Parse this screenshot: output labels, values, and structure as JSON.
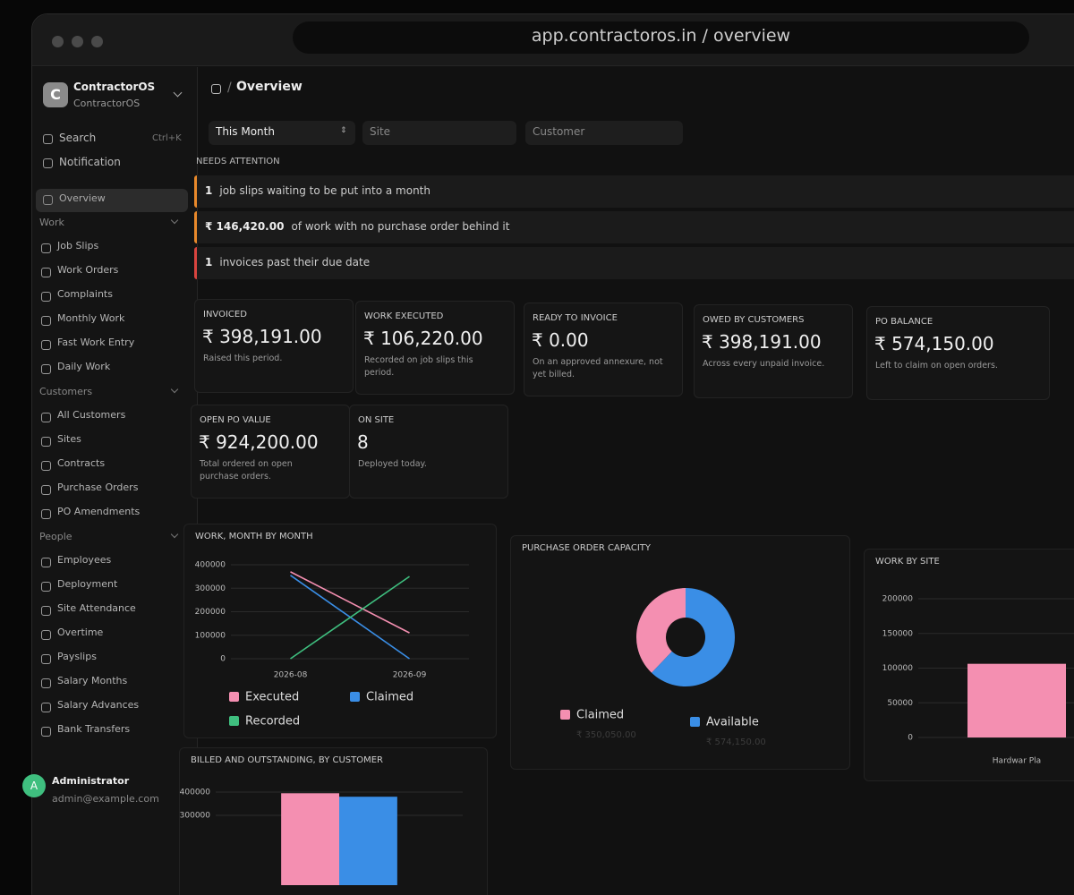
{
  "browser": {
    "url": "app.contractoros.in / overview"
  },
  "sidebar": {
    "org": {
      "initial": "C",
      "name": "ContractorOS",
      "sub": "ContractorOS"
    },
    "search": "Search",
    "shortcut": "Ctrl+K",
    "notification": "Notification",
    "overview": "Overview",
    "sections": [
      {
        "label": "Work",
        "items": [
          "Job Slips",
          "Work Orders",
          "Complaints",
          "Monthly Work",
          "Fast Work Entry",
          "Daily Work"
        ]
      },
      {
        "label": "Customers",
        "items": [
          "All Customers",
          "Sites",
          "Contracts",
          "Purchase Orders",
          "PO Amendments"
        ]
      },
      {
        "label": "People",
        "items": [
          "Employees",
          "Deployment",
          "Site Attendance",
          "Overtime",
          "Payslips",
          "Salary Months",
          "Salary Advances",
          "Bank Transfers"
        ]
      }
    ],
    "user": {
      "initial": "A",
      "name": "Administrator",
      "email": "admin@example.com"
    }
  },
  "breadcrumb": "Overview",
  "filters": [
    "This Month",
    "Site",
    "Customer"
  ],
  "attention": {
    "title": "NEEDS ATTENTION",
    "items": [
      {
        "value": "1",
        "text": "job slips waiting to be put into a month",
        "color": "#e8892b"
      },
      {
        "value": "₹ 146,420.00",
        "text": "of work with no purchase order behind it",
        "color": "#e8892b"
      },
      {
        "value": "1",
        "text": "invoices past their due date",
        "color": "#d9443f"
      }
    ]
  },
  "kpis": [
    {
      "label": "INVOICED",
      "value": "₹ 398,191.00",
      "note": "Raised this period."
    },
    {
      "label": "WORK EXECUTED",
      "value": "₹ 106,220.00",
      "note": "Recorded on job slips this period."
    },
    {
      "label": "READY TO INVOICE",
      "value": "₹ 0.00",
      "note": "On an approved annexure, not yet billed."
    },
    {
      "label": "OWED BY CUSTOMERS",
      "value": "₹ 398,191.00",
      "note": "Across every unpaid invoice."
    },
    {
      "label": "PO BALANCE",
      "value": "₹ 574,150.00",
      "note": "Left to claim on open orders."
    },
    {
      "label": "OPEN PO VALUE",
      "value": "₹ 924,200.00",
      "note": "Total ordered on open purchase orders."
    },
    {
      "label": "ON SITE",
      "value": "8",
      "note": "Deployed today."
    }
  ],
  "chart_data": [
    {
      "type": "line",
      "title": "WORK, MONTH BY MONTH",
      "categories": [
        "2026-08",
        "2026-09"
      ],
      "series": [
        {
          "name": "Executed",
          "color": "#f48fb1",
          "values": [
            370000,
            110000
          ]
        },
        {
          "name": "Claimed",
          "color": "#3a8ee6",
          "values": [
            355000,
            0
          ]
        },
        {
          "name": "Recorded",
          "color": "#3fbf7f",
          "values": [
            0,
            350000
          ]
        }
      ],
      "ylim": [
        0,
        400000
      ],
      "yticks": [
        0,
        100000,
        200000,
        300000,
        400000
      ],
      "grid": true
    },
    {
      "type": "pie",
      "donut": true,
      "title": "PURCHASE ORDER CAPACITY",
      "categories": [
        "Claimed",
        "Available"
      ],
      "values": [
        350050,
        574150
      ],
      "value_labels": [
        "₹ 350,050.00",
        "₹ 574,150.00"
      ],
      "colors": [
        "#f48fb1",
        "#3a8ee6"
      ]
    },
    {
      "type": "bar",
      "title": "WORK BY SITE",
      "categories": [
        "Hardwar Pla"
      ],
      "values": [
        106220
      ],
      "color": "#f48fb1",
      "ylim": [
        0,
        200000
      ],
      "yticks": [
        0,
        50000,
        100000,
        150000,
        200000
      ],
      "grid": true
    },
    {
      "type": "bar",
      "title": "BILLED AND OUTSTANDING, BY CUSTOMER",
      "categories": [
        null
      ],
      "series": [
        {
          "color": "#f48fb1",
          "values": [
            395000
          ]
        },
        {
          "color": "#3a8ee6",
          "values": [
            380000
          ]
        }
      ],
      "ylim": [
        0,
        450000
      ],
      "yticks": [
        300000,
        400000
      ],
      "grid": true
    }
  ]
}
